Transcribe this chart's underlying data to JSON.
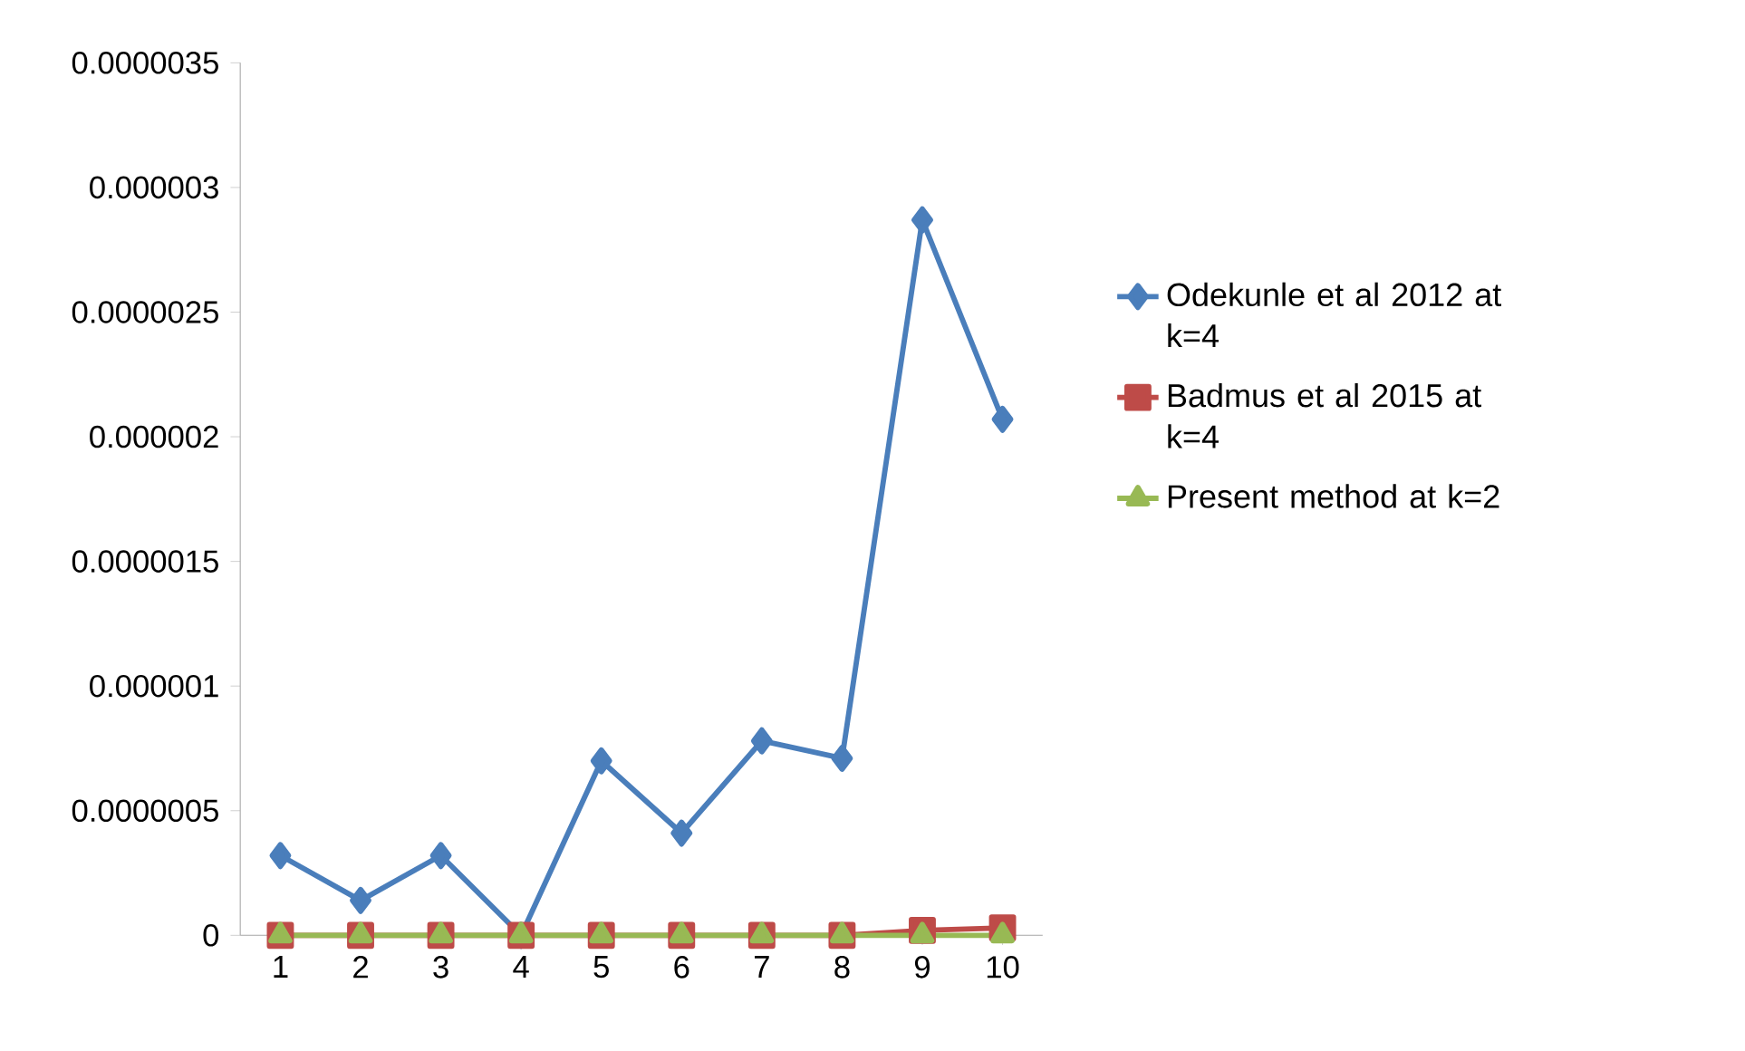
{
  "chart_data": {
    "type": "line",
    "categories": [
      "1",
      "2",
      "3",
      "4",
      "5",
      "6",
      "7",
      "8",
      "9",
      "10"
    ],
    "series": [
      {
        "name": "Odekunle et al 2012 at k=4",
        "color": "#4a7ebb",
        "marker": "diamond",
        "values": [
          3.2e-07,
          1.4e-07,
          3.2e-07,
          0.0,
          7e-07,
          4.1e-07,
          7.8e-07,
          7.1e-07,
          2.87e-06,
          2.07e-06
        ]
      },
      {
        "name": "Badmus et al 2015 at k=4",
        "color": "#be4b48",
        "marker": "square",
        "values": [
          0.0,
          0.0,
          0.0,
          0.0,
          0.0,
          0.0,
          0.0,
          0.0,
          2e-08,
          3e-08
        ]
      },
      {
        "name": "Present method at k=2",
        "color": "#98b954",
        "marker": "triangle",
        "values": [
          0.0,
          0.0,
          0.0,
          0.0,
          0.0,
          0.0,
          0.0,
          0.0,
          0.0,
          0.0
        ]
      }
    ],
    "ylim": [
      0,
      3.5e-06
    ],
    "yticks": [
      0,
      {
        "value": 5e-07,
        "label": "0.0000005"
      },
      {
        "value": 1e-06,
        "label": "0.000001"
      },
      {
        "value": 1.5e-06,
        "label": "0.0000015"
      },
      {
        "value": 2e-06,
        "label": "0.000002"
      },
      {
        "value": 2.5e-06,
        "label": "0.0000025"
      },
      {
        "value": 3e-06,
        "label": "0.000003"
      },
      {
        "value": 3.5e-06,
        "label": "0.0000035"
      }
    ],
    "legend": "right",
    "grid": false,
    "line_style": "solid"
  }
}
